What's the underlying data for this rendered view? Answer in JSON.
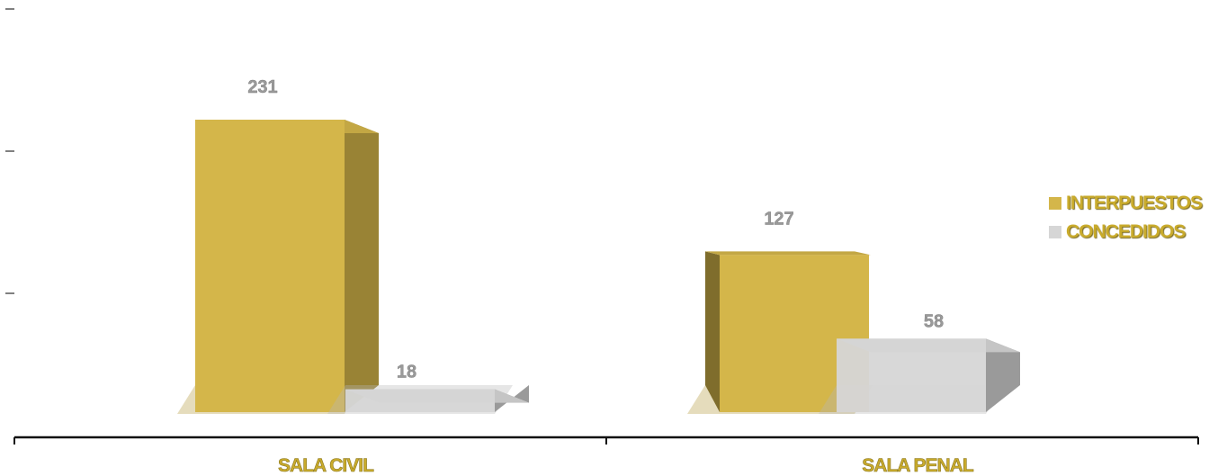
{
  "chart_data": {
    "type": "bar",
    "title": "",
    "xlabel": "",
    "ylabel": "",
    "categories": [
      "SALA CIVIL",
      "SALA PENAL"
    ],
    "series": [
      {
        "name": "INTERPUESTOS",
        "values": [
          231,
          127
        ],
        "color": "#d4b64a"
      },
      {
        "name": "CONCEDIDOS",
        "values": [
          18,
          58
        ],
        "color": "#d6d6d6"
      }
    ],
    "ylim": [
      0,
      330
    ],
    "data_labels": true,
    "legend_position": "right",
    "grid": false,
    "style": "3d-column"
  }
}
